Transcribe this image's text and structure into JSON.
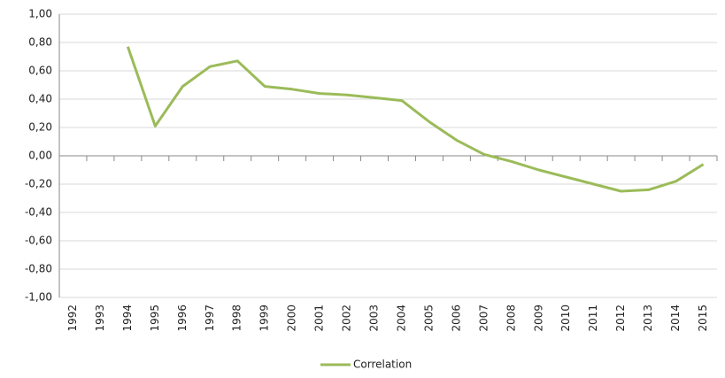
{
  "chart_data": {
    "type": "line",
    "categories": [
      "1992",
      "1993",
      "1994",
      "1995",
      "1996",
      "1997",
      "1998",
      "1999",
      "2000",
      "2001",
      "2002",
      "2003",
      "2004",
      "2005",
      "2006",
      "2007",
      "2008",
      "2009",
      "2010",
      "2011",
      "2012",
      "2013",
      "2014",
      "2015"
    ],
    "series": [
      {
        "name": "Correlation",
        "color": "#9bbb59",
        "values": [
          null,
          null,
          0.77,
          0.21,
          0.49,
          0.63,
          0.67,
          0.49,
          0.47,
          0.44,
          0.43,
          0.41,
          0.39,
          0.24,
          0.11,
          0.01,
          -0.04,
          -0.1,
          -0.15,
          -0.2,
          -0.25,
          -0.24,
          -0.18,
          -0.06
        ]
      }
    ],
    "ylim": [
      -1,
      1
    ],
    "yticks": [
      {
        "value": 1,
        "label": "1,00"
      },
      {
        "value": 0.8,
        "label": "0,80"
      },
      {
        "value": 0.6,
        "label": "0,60"
      },
      {
        "value": 0.4,
        "label": "0,40"
      },
      {
        "value": 0.2,
        "label": "0,20"
      },
      {
        "value": 0,
        "label": "0,00"
      },
      {
        "value": -0.2,
        "label": "-0,20"
      },
      {
        "value": -0.4,
        "label": "-0,40"
      },
      {
        "value": -0.6,
        "label": "-0,60"
      },
      {
        "value": -0.8,
        "label": "-0,80"
      },
      {
        "value": -1,
        "label": "-1,00"
      }
    ],
    "grid": true,
    "legend": "bottom"
  }
}
